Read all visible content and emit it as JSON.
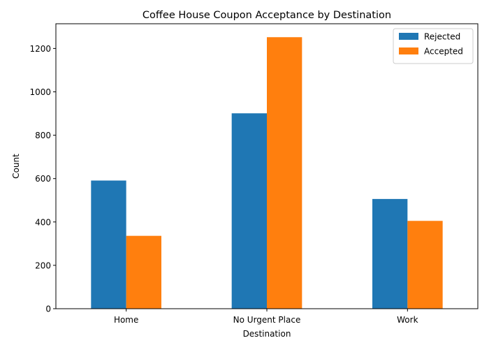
{
  "chart_data": {
    "type": "bar",
    "title": "Coffee House Coupon Acceptance by Destination",
    "xlabel": "Destination",
    "ylabel": "Count",
    "categories": [
      "Home",
      "No Urgent Place",
      "Work"
    ],
    "series": [
      {
        "name": "Rejected",
        "color": "#1f77b4",
        "values": [
          591,
          901,
          506
        ]
      },
      {
        "name": "Accepted",
        "color": "#ff7f0e",
        "values": [
          336,
          1252,
          405
        ]
      }
    ],
    "ylim": [
      0,
      1314
    ],
    "yticks": [
      0,
      200,
      400,
      600,
      800,
      1000,
      1200
    ],
    "legend_position": "top-right",
    "grid": false
  }
}
